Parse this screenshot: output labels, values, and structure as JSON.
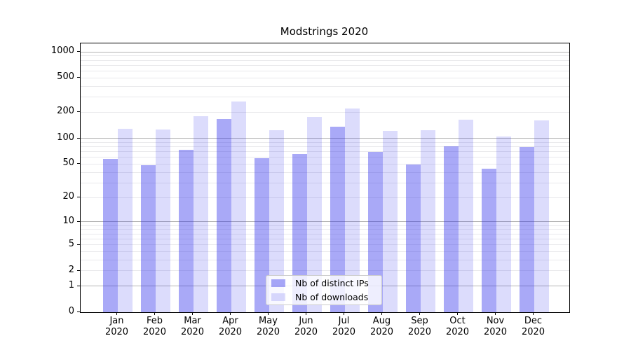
{
  "chart_data": {
    "type": "bar",
    "title": "Modstrings 2020",
    "categories": [
      "Jan 2020",
      "Feb 2020",
      "Mar 2020",
      "Apr 2020",
      "May 2020",
      "Jun 2020",
      "Jul 2020",
      "Aug 2020",
      "Sep 2020",
      "Oct 2020",
      "Nov 2020",
      "Dec 2020"
    ],
    "series": [
      {
        "name": "Nb of distinct IPs",
        "color": "rgba(40,40,235,0.40)",
        "values": [
          57,
          48,
          74,
          166,
          59,
          66,
          137,
          69,
          49,
          80,
          44,
          79
        ]
      },
      {
        "name": "Nb of downloads",
        "color": "rgba(40,40,235,0.16)",
        "values": [
          130,
          126,
          182,
          266,
          125,
          177,
          222,
          121,
          124,
          163,
          105,
          160
        ]
      }
    ],
    "xlabel": "",
    "ylabel": "",
    "yscale": "log1p",
    "y_ticks": [
      0,
      1,
      2,
      5,
      10,
      20,
      50,
      100,
      200,
      500,
      1000
    ],
    "ylim": [
      0,
      1250
    ],
    "grid": {
      "major_values": [
        1,
        10,
        100,
        1000
      ],
      "major_color": "#b3b3b3",
      "minor_color": "#e9e9ec"
    },
    "legend_position": "lower center",
    "axis_color": "#000000",
    "background_color": "#ffffff"
  }
}
